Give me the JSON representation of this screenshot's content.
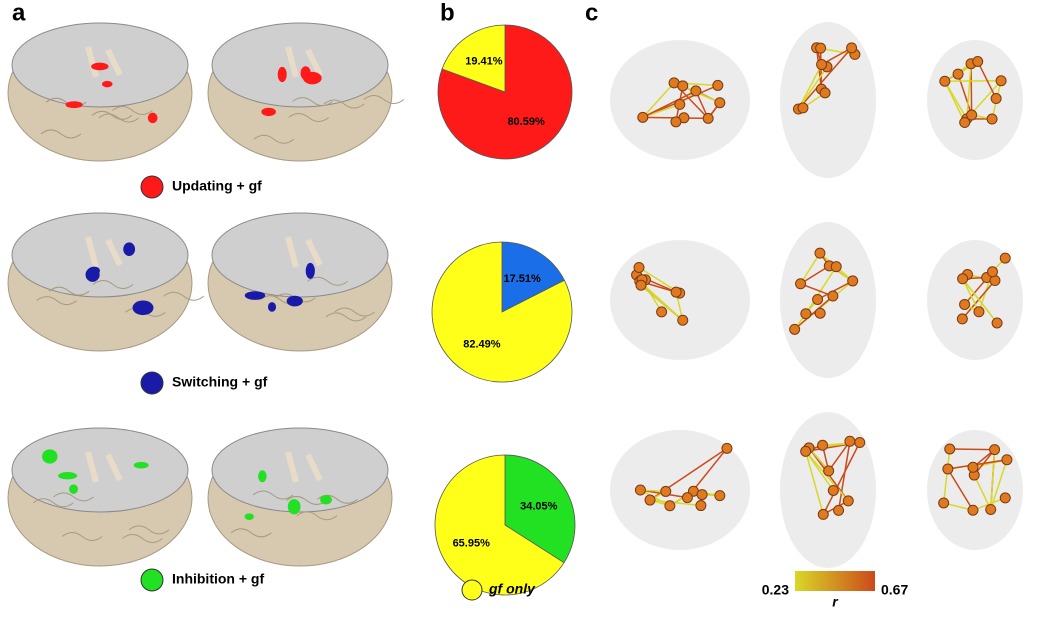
{
  "panel_a": {
    "label": "a",
    "legend": [
      {
        "text": "Updating + gf",
        "color": "#ff1a1a"
      },
      {
        "text": "Switching + gf",
        "color": "#1a1aa8"
      },
      {
        "text": "Inhibition + gf",
        "color": "#22e022"
      }
    ]
  },
  "panel_b": {
    "label": "b",
    "charts": [
      {
        "type": "pie",
        "values": [
          80.59,
          19.41
        ],
        "value_labels": [
          "80.59%",
          "19.41%"
        ],
        "colors": [
          "#ff1a1a",
          "#ffff1a"
        ]
      },
      {
        "type": "pie",
        "values": [
          17.51,
          82.49
        ],
        "value_labels": [
          "17.51%",
          "82.49%"
        ],
        "colors": [
          "#1a6ee8",
          "#ffff1a"
        ]
      },
      {
        "type": "pie",
        "values": [
          34.05,
          65.95
        ],
        "value_labels": [
          "34.05%",
          "65.95%"
        ],
        "colors": [
          "#22e022",
          "#ffff1a"
        ]
      }
    ],
    "legend": {
      "text": "gf only",
      "color": "#ffff1a"
    }
  },
  "panel_c": {
    "label": "c",
    "colorbar": {
      "range": [
        0.23,
        0.67
      ],
      "label": "r",
      "colors": [
        "#d8d828",
        "#cc4a1a"
      ]
    }
  }
}
